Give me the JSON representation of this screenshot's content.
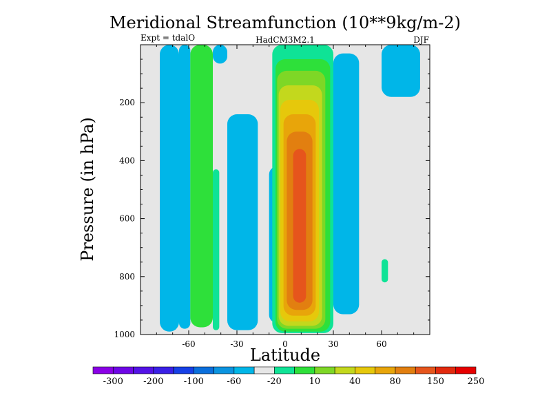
{
  "chart_data": {
    "type": "heatmap",
    "title": "Meridional Streamfunction (10**9kg/m-2)",
    "subtitle_left": "Expt = tdalO",
    "subtitle_center": "HadCM3M2.1",
    "subtitle_right": "DJF",
    "xlabel": "Latitude",
    "ylabel": "Pressure (in hPa)",
    "xlim": [
      -90,
      90
    ],
    "ylim": [
      1000,
      0
    ],
    "xticks": [
      -60,
      -30,
      0,
      30,
      60
    ],
    "xtick_labels": [
      "-60",
      "-30",
      "0",
      "30",
      "60"
    ],
    "yticks": [
      200,
      400,
      600,
      800,
      1000
    ],
    "ytick_labels": [
      "200",
      "400",
      "600",
      "800",
      "1000"
    ],
    "colorbar": {
      "colors": [
        "#8a00e6",
        "#6e06e6",
        "#5312e6",
        "#3a20e6",
        "#1640e6",
        "#0a6fdc",
        "#0b94e0",
        "#00b6e8",
        "#e6e6e6",
        "#0fe396",
        "#2ee03a",
        "#7ed726",
        "#c3d81d",
        "#e6c80b",
        "#e8a50a",
        "#e27f10",
        "#e6551c",
        "#e22a0e",
        "#e60000"
      ],
      "tick_labels": [
        "-300",
        "-200",
        "-100",
        "-60",
        "-20",
        "10",
        "40",
        "80",
        "150",
        "250"
      ]
    },
    "fields": [
      {
        "name": "gap-lo",
        "color": "#e6e6e6",
        "lat": [
          -76,
          -72
        ],
        "p": [
          0,
          430
        ]
      },
      {
        "name": "band-a",
        "color": "#00b6e8",
        "lat": [
          -78,
          -66
        ],
        "p": [
          0,
          990
        ]
      },
      {
        "name": "band-b-cyan",
        "color": "#00b6e8",
        "lat": [
          -66,
          -59
        ],
        "p": [
          0,
          980
        ]
      },
      {
        "name": "band-b-green",
        "color": "#2ee03a",
        "lat": [
          -59,
          -45
        ],
        "p": [
          0,
          975
        ]
      },
      {
        "name": "band-b-light",
        "color": "#0fe396",
        "lat": [
          -45,
          -41
        ],
        "p": [
          430,
          985
        ]
      },
      {
        "name": "cyan-top",
        "color": "#00b6e8",
        "lat": [
          -45,
          -36
        ],
        "p": [
          0,
          65
        ]
      },
      {
        "name": "band-c",
        "color": "#00b6e8",
        "lat": [
          -36,
          -17
        ],
        "p": [
          240,
          985
        ]
      },
      {
        "name": "band-d",
        "color": "#00b6e8",
        "lat": [
          -10,
          0
        ],
        "p": [
          420,
          960
        ]
      },
      {
        "name": "hadley-40",
        "color": "#0fe396",
        "lat": [
          -8,
          30
        ],
        "p": [
          0,
          995
        ]
      },
      {
        "name": "hadley-80",
        "color": "#2ee03a",
        "lat": [
          -6,
          28
        ],
        "p": [
          50,
          990
        ]
      },
      {
        "name": "hadley-150a",
        "color": "#7ed726",
        "lat": [
          -5,
          25
        ],
        "p": [
          90,
          980
        ]
      },
      {
        "name": "hadley-150b",
        "color": "#c3d81d",
        "lat": [
          -4,
          23
        ],
        "p": [
          140,
          970
        ]
      },
      {
        "name": "hadley-250a",
        "color": "#e6c80b",
        "lat": [
          -3,
          21
        ],
        "p": [
          190,
          955
        ]
      },
      {
        "name": "hadley-250b",
        "color": "#e8a50a",
        "lat": [
          -1,
          19
        ],
        "p": [
          240,
          935
        ]
      },
      {
        "name": "hadley-max",
        "color": "#e27f10",
        "lat": [
          1,
          17
        ],
        "p": [
          300,
          915
        ]
      },
      {
        "name": "hadley-core",
        "color": "#e6551c",
        "lat": [
          5,
          13
        ],
        "p": [
          360,
          890
        ]
      },
      {
        "name": "ferrel-s",
        "color": "#00b6e8",
        "lat": [
          30,
          46
        ],
        "p": [
          30,
          930
        ]
      },
      {
        "name": "ferrel-n",
        "color": "#00b6e8",
        "lat": [
          60,
          84
        ],
        "p": [
          0,
          180
        ]
      },
      {
        "name": "polar-green",
        "color": "#0fe396",
        "lat": [
          60,
          64
        ],
        "p": [
          740,
          820
        ]
      }
    ]
  }
}
